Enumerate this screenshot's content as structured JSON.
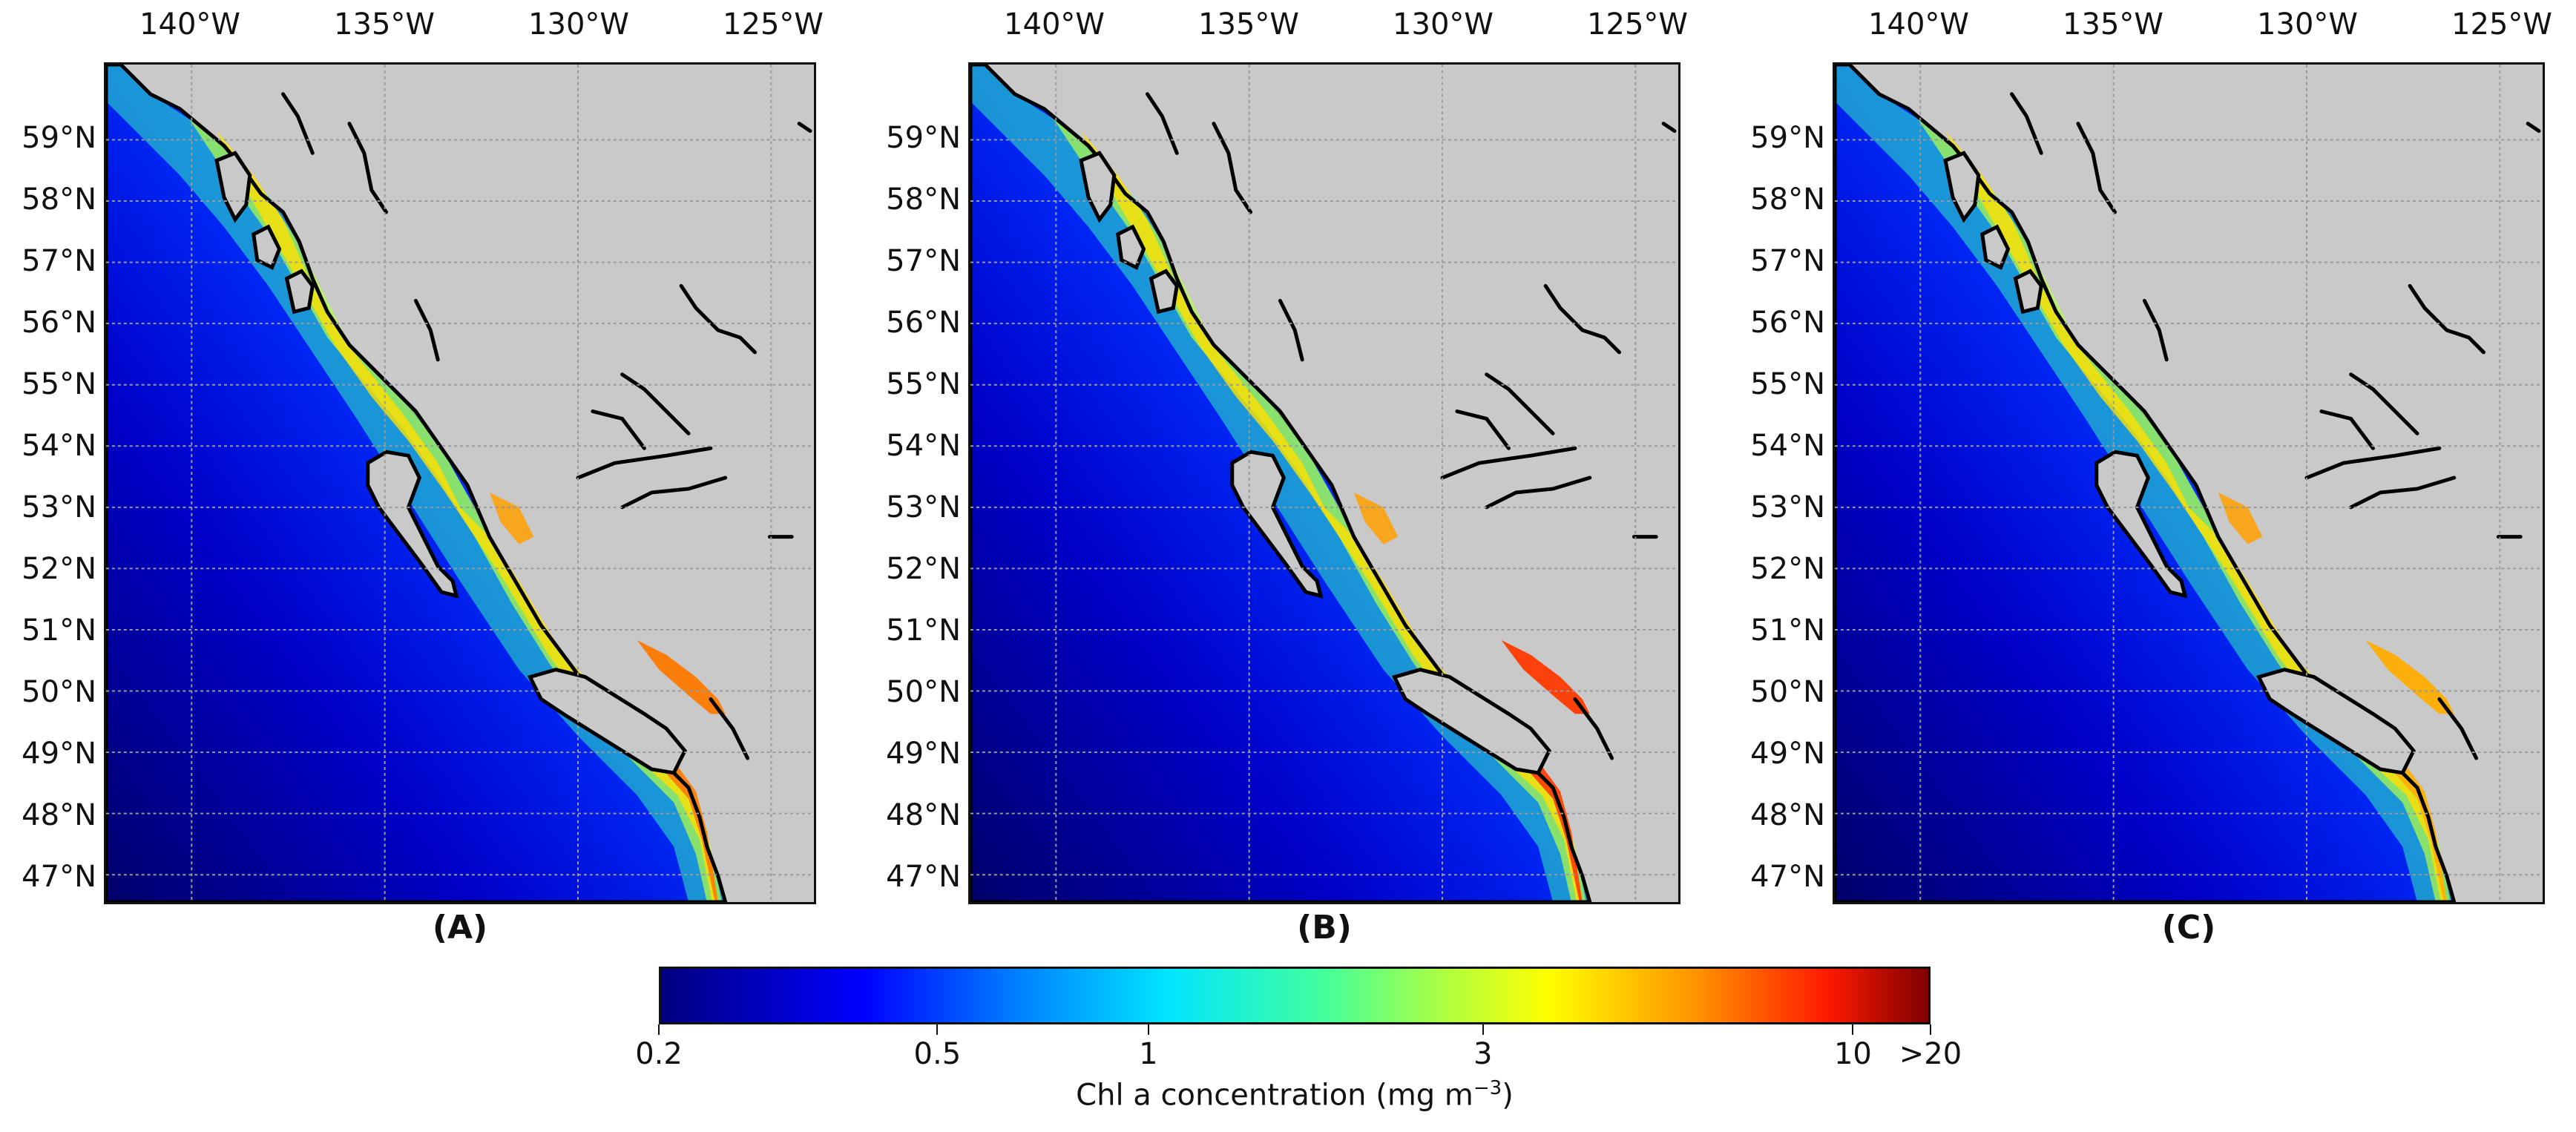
{
  "axes": {
    "lon_ticks": [
      "140°W",
      "135°W",
      "130°W",
      "125°W"
    ],
    "lat_ticks": [
      "59°N",
      "58°N",
      "57°N",
      "56°N",
      "55°N",
      "54°N",
      "53°N",
      "52°N",
      "51°N",
      "50°N",
      "49°N",
      "48°N",
      "47°N"
    ]
  },
  "panels": [
    {
      "label": "(A)"
    },
    {
      "label": "(B)"
    },
    {
      "label": "(C)"
    }
  ],
  "colorbar": {
    "ticks": [
      "0.2",
      "0.5",
      "1",
      "3",
      "10",
      ">20"
    ],
    "title_main": "Chl a concentration (mg m",
    "title_exp": "−3",
    "title_end": ")",
    "colormap": "jet",
    "scale": "log"
  },
  "colors": {
    "land": "#c9c9c9",
    "coastline": "#000000",
    "grid": "#9a9a9a"
  }
}
